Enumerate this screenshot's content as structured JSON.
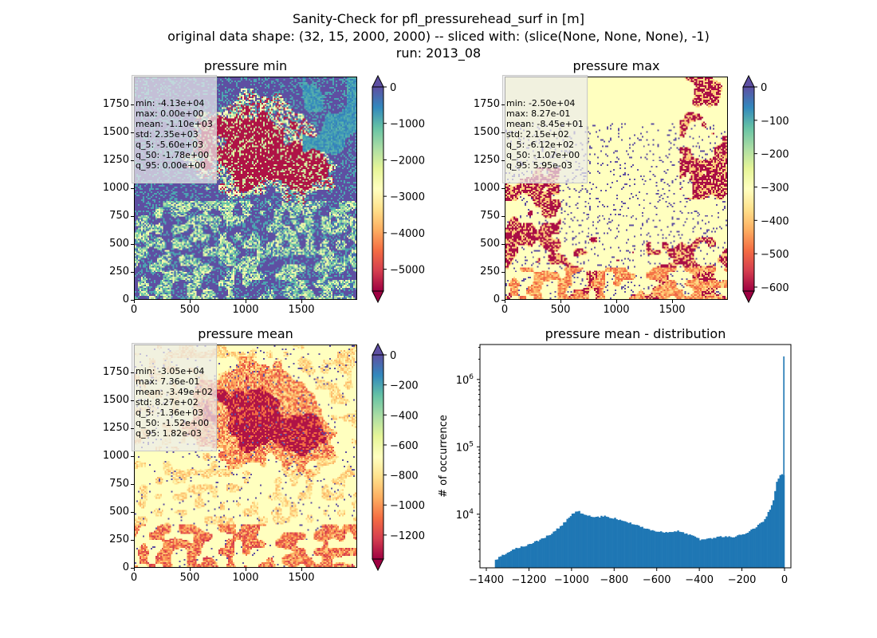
{
  "figure": {
    "title_lines": [
      "Sanity-Check for pfl_pressurehead_surf in [m]",
      "original data shape: (32, 15, 2000, 2000) -- sliced with: (slice(None, None, None), -1)",
      "run: 2013_08"
    ]
  },
  "chart_data": [
    {
      "type": "heatmap",
      "title": "pressure min",
      "x_ticks": [
        "0",
        "500",
        "1000",
        "1500"
      ],
      "y_ticks": [
        "0",
        "250",
        "500",
        "750",
        "1000",
        "1250",
        "1500",
        "1750"
      ],
      "xlim": [
        0,
        2000
      ],
      "ylim": [
        0,
        2000
      ],
      "colormap": "Spectral",
      "colorbar": {
        "ticks": [
          "0",
          "−1000",
          "−2000",
          "−3000",
          "−4000",
          "−5000"
        ],
        "range": [
          -5600,
          0
        ],
        "extend": "both"
      },
      "stats": [
        "min: -4.13e+04",
        "max: 0.00e+00",
        "mean: -1.10e+03",
        "std: 2.35e+03",
        "q_5: -5.60e+03",
        "q_50: -1.78e+00",
        "q_95: 0.00e+00"
      ]
    },
    {
      "type": "heatmap",
      "title": "pressure max",
      "x_ticks": [
        "0",
        "500",
        "1000",
        "1500"
      ],
      "y_ticks": [
        "0",
        "250",
        "500",
        "750",
        "1000",
        "1250",
        "1500",
        "1750"
      ],
      "xlim": [
        0,
        2000
      ],
      "ylim": [
        0,
        2000
      ],
      "colormap": "Spectral",
      "colorbar": {
        "ticks": [
          "0",
          "−100",
          "−200",
          "−300",
          "−400",
          "−500",
          "−600"
        ],
        "range": [
          -612,
          0
        ],
        "extend": "both"
      },
      "stats": [
        "min: -2.50e+04",
        "max: 8.27e-01",
        "mean: -8.45e+01",
        "std: 2.15e+02",
        "q_5: -6.12e+02",
        "q_50: -1.07e+00",
        "q_95: 5.95e-03"
      ]
    },
    {
      "type": "heatmap",
      "title": "pressure mean",
      "x_ticks": [
        "0",
        "500",
        "1000",
        "1500"
      ],
      "y_ticks": [
        "0",
        "250",
        "500",
        "750",
        "1000",
        "1250",
        "1500",
        "1750"
      ],
      "xlim": [
        0,
        2000
      ],
      "ylim": [
        0,
        2000
      ],
      "colormap": "Spectral",
      "colorbar": {
        "ticks": [
          "0",
          "−200",
          "−400",
          "−600",
          "−800",
          "−1000",
          "−1200"
        ],
        "range": [
          -1360,
          0
        ],
        "extend": "both"
      },
      "stats": [
        "min: -3.05e+04",
        "max: 7.36e-01",
        "mean: -3.49e+02",
        "std: 8.27e+02",
        "q_5: -1.36e+03",
        "q_50: -1.52e+00",
        "q_95: 1.82e-03"
      ]
    },
    {
      "type": "bar",
      "title": "pressure mean - distribution",
      "xlabel": "",
      "ylabel": "# of occurrence",
      "x_ticks": [
        "−1400",
        "−1200",
        "−1000",
        "−800",
        "−600",
        "−400",
        "−200",
        "0"
      ],
      "y_ticks": [
        "10^4",
        "10^5",
        "10^6"
      ],
      "xlim": [
        -1430,
        30
      ],
      "ylim": [
        1600,
        3300000
      ],
      "yscale": "log",
      "bar_color": "#1f77b4",
      "x": [
        -1360,
        -1300,
        -1250,
        -1200,
        -1150,
        -1100,
        -1050,
        -1000,
        -970,
        -950,
        -900,
        -850,
        -800,
        -750,
        -700,
        -650,
        -600,
        -550,
        -500,
        -450,
        -400,
        -350,
        -300,
        -250,
        -200,
        -150,
        -100,
        -60,
        -40,
        -20,
        -10,
        -3,
        0
      ],
      "values": [
        2100,
        2800,
        3200,
        3600,
        4200,
        5100,
        6800,
        10200,
        11000,
        9800,
        9000,
        9300,
        8700,
        7800,
        6900,
        6000,
        5500,
        5300,
        5600,
        5000,
        4200,
        4300,
        4700,
        4600,
        5000,
        6000,
        8000,
        14000,
        30000,
        40000,
        36000,
        40000,
        2200000
      ]
    }
  ]
}
